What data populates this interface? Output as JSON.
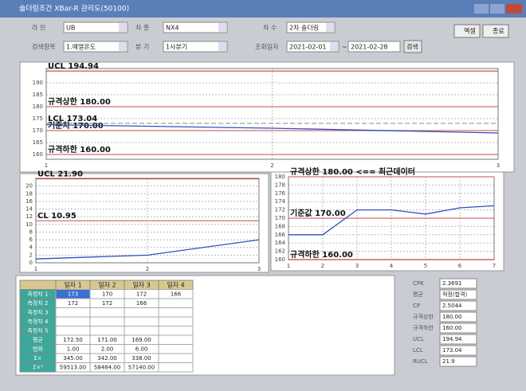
{
  "window": {
    "title": "솔더링조건 XBar-R 관리도(50100)"
  },
  "filters": [
    {
      "label": "라 인",
      "value": "UB"
    },
    {
      "label": "차 종",
      "value": "NX4"
    },
    {
      "label": "차 수",
      "value": "2차 솔더링"
    },
    {
      "label": "검색항목",
      "value": "1.예열온도"
    },
    {
      "label": "분 기",
      "value": "1사분기"
    },
    {
      "label": "조회일자",
      "value": "2021-02-01"
    }
  ],
  "date_sep": "~",
  "date_to": "2021-02-28",
  "buttons": {
    "search": "검색",
    "excel": "엑셀",
    "close": "종료"
  },
  "charts": [
    {
      "ylim": [
        158,
        196
      ],
      "yticks": [
        160,
        165,
        170,
        175,
        180,
        185,
        190
      ],
      "xlim": [
        1,
        3
      ],
      "xticks": [
        1,
        2,
        3
      ],
      "values": [
        172.5,
        171,
        169
      ],
      "refs": [
        {
          "label": "UCL 194.94",
          "value": 194.94,
          "color": "#c04040",
          "dashed": false
        },
        {
          "label": "규격상한 180.00",
          "value": 180,
          "color": "#d07070",
          "dashed": false
        },
        {
          "label": "LCL 173.04",
          "value": 173.04,
          "color": "#a0a0a0",
          "dashed": true
        },
        {
          "label": "기준치 170.00",
          "value": 170,
          "color": "#d07070",
          "dashed": false
        },
        {
          "label": "규격하한 160.00",
          "value": 160,
          "color": "#d07070",
          "dashed": false
        }
      ]
    },
    {
      "ylim": [
        0,
        22
      ],
      "yticks": [
        0,
        2,
        4,
        6,
        8,
        10,
        12,
        14,
        16,
        18,
        20
      ],
      "xlim": [
        1,
        3
      ],
      "xticks": [
        1,
        2,
        3
      ],
      "values": [
        1,
        2,
        6
      ],
      "refs": [
        {
          "label": "UCL 21.90",
          "value": 21.9,
          "color": "#c04040",
          "dashed": false
        },
        {
          "label": "CL 10.95",
          "value": 10.95,
          "color": "#d07070",
          "dashed": false
        }
      ]
    },
    {
      "ylim": [
        160,
        180
      ],
      "yticks": [
        160,
        162,
        164,
        166,
        168,
        170,
        172,
        174,
        176,
        178,
        180
      ],
      "xlim": [
        1,
        7
      ],
      "xticks": [
        1,
        2,
        3,
        4,
        5,
        6,
        7
      ],
      "values": [
        166,
        166,
        172,
        172,
        171,
        172.5,
        173
      ],
      "refs": [
        {
          "label": "규격상한 180.00 <== 최근데이터",
          "value": 180,
          "color": "#d07070",
          "dashed": false
        },
        {
          "label": "기준값 170.00",
          "value": 170,
          "color": "#d07070",
          "dashed": false
        },
        {
          "label": "규격하한 160.00",
          "value": 160,
          "color": "#c04040",
          "dashed": false
        }
      ]
    }
  ],
  "table": {
    "headers": [
      "일자 1",
      "일자 2",
      "일자 3",
      "일자 4"
    ],
    "rows": [
      {
        "label": "측정치 1",
        "cells": [
          "173",
          "170",
          "172",
          "166"
        ]
      },
      {
        "label": "측정치 2",
        "cells": [
          "172",
          "172",
          "166"
        ]
      },
      {
        "label": "측정치 3",
        "cells": []
      },
      {
        "label": "측정치 4",
        "cells": []
      },
      {
        "label": "측정치 5",
        "cells": []
      },
      {
        "label": "평균",
        "cells": [
          "172.50",
          "171.00",
          "169.00"
        ]
      },
      {
        "label": "범위",
        "cells": [
          "1.00",
          "2.00",
          "6.00"
        ]
      },
      {
        "label": "Σ×",
        "cells": [
          "345.00",
          "342.00",
          "338.00"
        ]
      },
      {
        "label": "Σ×²",
        "cells": [
          "59513.00",
          "58484.00",
          "57140.00"
        ]
      }
    ]
  },
  "stats": [
    {
      "label": "CPK",
      "value": "2.3691"
    },
    {
      "label": "평균",
      "value": "적정(합격)"
    },
    {
      "label": "CP",
      "value": "2.5044"
    },
    {
      "label": "규격상한",
      "value": "180.00"
    },
    {
      "label": "규격하한",
      "value": "160.00"
    },
    {
      "label": "UCL",
      "value": "194.94"
    },
    {
      "label": "LCL",
      "value": "173.04"
    },
    {
      "label": "RUCL",
      "value": "21.9"
    }
  ]
}
